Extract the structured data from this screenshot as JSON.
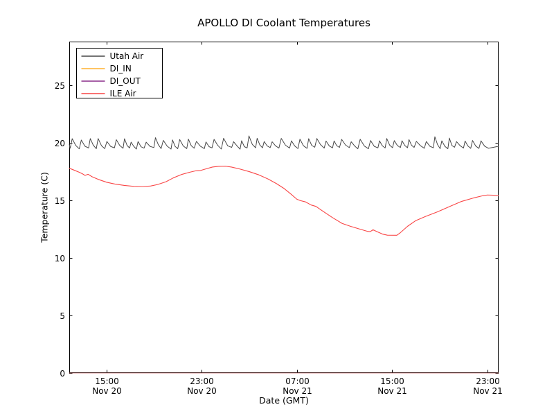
{
  "figure": {
    "title": "APOLLO DI Coolant Temperatures",
    "background_color": "#ffffff",
    "spine_color": "#000000",
    "bottom_spine_tint": "maroon-blend-from-zero-value-lines"
  },
  "chart_data": {
    "type": "line",
    "title": "APOLLO DI Coolant Temperatures",
    "xlabel": "Date (GMT)",
    "ylabel": "Temperature (C)",
    "grid": false,
    "legend_position": "upper left",
    "x_unit": "hours since Nov 20 00:00 GMT",
    "xlim": [
      11.87,
      47.95
    ],
    "ylim": [
      0,
      28.8
    ],
    "yticks": [
      0,
      5,
      10,
      15,
      20,
      25
    ],
    "xticks": [
      {
        "hours": 15,
        "time": "15:00",
        "date": "Nov 20"
      },
      {
        "hours": 23,
        "time": "23:00",
        "date": "Nov 20"
      },
      {
        "hours": 31,
        "time": "07:00",
        "date": "Nov 21"
      },
      {
        "hours": 39,
        "time": "15:00",
        "date": "Nov 21"
      },
      {
        "hours": 47,
        "time": "23:00",
        "date": "Nov 21"
      }
    ],
    "series": [
      {
        "name": "Utah Air",
        "color": "#474747",
        "shape": "sawtooth",
        "description": "rapid-cycling sawtooth: quick rise, slow decay, ~45-min period",
        "trough_range": [
          19.45,
          19.62
        ],
        "peak_range": [
          20.05,
          20.42
        ],
        "tall_peak_bonus": 0.22,
        "tall_every": 11,
        "period_hours_range": [
          0.55,
          0.9
        ],
        "rise_fraction": 0.22,
        "seed": 42,
        "start_value": 19.85,
        "end_value": 19.7,
        "approx_mean": 19.8
      },
      {
        "name": "DI_IN",
        "color": "#ffb02e",
        "opacity": 0.3,
        "points": [
          [
            11.87,
            0
          ],
          [
            47.95,
            0
          ]
        ]
      },
      {
        "name": "DI_OUT",
        "color": "#8a2c8a",
        "opacity": 0.3,
        "points": [
          [
            11.87,
            0
          ],
          [
            47.95,
            0
          ]
        ]
      },
      {
        "name": "ILE Air",
        "color": "#f94545",
        "points": [
          [
            11.87,
            17.8
          ],
          [
            12.3,
            17.62
          ],
          [
            12.7,
            17.45
          ],
          [
            13.0,
            17.3
          ],
          [
            13.2,
            17.17
          ],
          [
            13.45,
            17.27
          ],
          [
            13.8,
            17.05
          ],
          [
            14.3,
            16.83
          ],
          [
            15.0,
            16.58
          ],
          [
            15.7,
            16.42
          ],
          [
            16.5,
            16.3
          ],
          [
            17.3,
            16.22
          ],
          [
            18.0,
            16.2
          ],
          [
            18.7,
            16.25
          ],
          [
            19.3,
            16.38
          ],
          [
            20.0,
            16.62
          ],
          [
            20.6,
            16.95
          ],
          [
            21.3,
            17.25
          ],
          [
            22.0,
            17.45
          ],
          [
            22.5,
            17.57
          ],
          [
            22.9,
            17.6
          ],
          [
            23.4,
            17.75
          ],
          [
            23.9,
            17.9
          ],
          [
            24.4,
            17.96
          ],
          [
            25.0,
            17.97
          ],
          [
            25.5,
            17.9
          ],
          [
            26.2,
            17.73
          ],
          [
            27.0,
            17.5
          ],
          [
            27.8,
            17.22
          ],
          [
            28.6,
            16.85
          ],
          [
            29.3,
            16.45
          ],
          [
            29.9,
            16.05
          ],
          [
            30.5,
            15.55
          ],
          [
            31.0,
            15.1
          ],
          [
            31.3,
            14.98
          ],
          [
            31.7,
            14.88
          ],
          [
            32.2,
            14.6
          ],
          [
            32.6,
            14.48
          ],
          [
            33.2,
            14.05
          ],
          [
            34.0,
            13.5
          ],
          [
            34.8,
            13.0
          ],
          [
            35.5,
            12.75
          ],
          [
            36.3,
            12.5
          ],
          [
            36.9,
            12.32
          ],
          [
            37.15,
            12.28
          ],
          [
            37.4,
            12.45
          ],
          [
            37.7,
            12.3
          ],
          [
            38.2,
            12.07
          ],
          [
            38.6,
            11.98
          ],
          [
            39.4,
            11.97
          ],
          [
            39.7,
            12.2
          ],
          [
            40.3,
            12.75
          ],
          [
            41.0,
            13.25
          ],
          [
            41.8,
            13.6
          ],
          [
            42.8,
            14.0
          ],
          [
            43.8,
            14.45
          ],
          [
            44.8,
            14.9
          ],
          [
            45.8,
            15.2
          ],
          [
            46.6,
            15.4
          ],
          [
            47.0,
            15.47
          ],
          [
            47.5,
            15.45
          ],
          [
            47.93,
            15.4
          ]
        ]
      }
    ]
  }
}
